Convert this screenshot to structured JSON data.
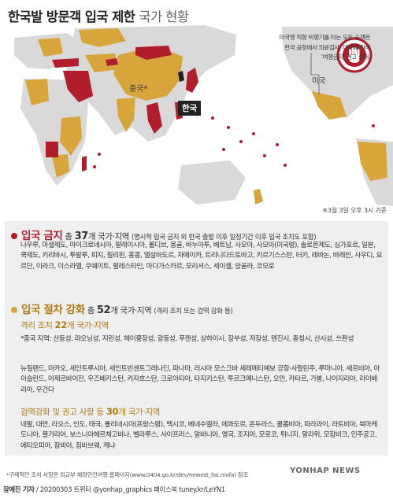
{
  "header": {
    "title_main": "한국발 방문객 입국 제한",
    "title_sub": "국가 현황"
  },
  "map": {
    "note_usa": "미국행 직항 비행기를 타는 모든 승객은 한국 공항에서 의료검사, 대구에 한해 '여행금지' 권고 상태.",
    "label_china": "중국*",
    "label_korea": "한국",
    "label_usa": "미국",
    "basis": "※3월 3일 오후 3시 기준",
    "stop_icon": "hand-stop-icon",
    "colors": {
      "ban": "#b11d2a",
      "procedure": "#d8a53b",
      "korea": "#222222",
      "land": "#d9d9d9",
      "sea": "#ffffff"
    }
  },
  "ban": {
    "title": "입국 금지",
    "total_prefix": "총",
    "count": "37",
    "unit": "개 국가·지역",
    "desc": "(명시적 입국 금지 외 한국 출발 이후 일정기간 이후 입국 조치도 포함)",
    "countries": "나우루, 마셜제도, 마이크로네시아, 말레이시아, 몰디브, 몽골, 바누아투, 베트남, 사모아, 사모아(미국령), 솔로몬제도, 싱가포르, 일본, 쿡제도, 키리바시, 투발루, 피지, 필리핀, 홍콩, 엘살바도르, 자메이카, 트리니다드토바고, 키르기스스탄, 터키, 레바논, 바레인, 사우디, 요르단, 이라크, 이스라엘, 쿠웨이트, 팔레스타인, 마다가스카르, 모리셔스, 세이셸, 앙골라, 코모로",
    "color": "#b11d2a"
  },
  "procedure": {
    "title": "입국 절차 강화",
    "total_prefix": "총",
    "count": "52",
    "unit": "개 국가·지역",
    "desc": "(격리 조치 또는 검역 강화 등)",
    "color": "#d8a53b",
    "quarantine": {
      "title": "격리 조치",
      "count": "22",
      "unit": "개 국가·지역",
      "china_regions": "*중국 지역: 산둥성, 랴오닝성, 지린성, 헤이룽장성, 광둥성, 푸젠성, 상하이시, 장쑤성, 저장성, 톈진시, 충칭시, 산시성, 쓰촨성",
      "countries": "뉴질랜드, 마카오, 세인트루시아, 세인트빈센트그레나딘, 파나마, 러시아 모스크바 셰레메티예보 공항·사할린주, 루마니아, 세르비아, 아이슬란드, 아제르바이잔, 우즈베키스탄, 카자흐스탄, 크로아티아, 타지키스탄, 투르크메니스탄, 오만, 카타르, 가봉, 나이지리아, 라이베리아, 우간다"
    },
    "inspection": {
      "title": "검역강화 및 권고 사항 등",
      "count": "30",
      "unit": "개 국가·지역",
      "countries": "네팔, 대만, 라오스, 인도, 태국, 폴리네시아(프랑스령), 멕시코, 베네수엘라, 에콰도르, 온두라스, 콜롬비아, 파라과이, 라트비아, 북마케도니아, 불가리아, 보스니아헤르체고비나, 벨라루스, 사이프러스, 알바니아, 영국, 조지아, 모로코, 튀니지, 말라위, 모잠비크, 민주공고, 에티오피아, 잠비아, 짐바브웨, 케냐"
    }
  },
  "footer": {
    "footnote": "*구체적인 조치 사항은 외교부 해외안전여행 홈페이지(www.0404.go.kr/dev/newest_list.mofa) 참조",
    "byline_author": "장예진 기자",
    "byline_rest": " / 20200303 트위터 @yonhap_graphics 페이스북 tuney.kr/LeYN1",
    "logo": "YONHAP NEWS"
  }
}
